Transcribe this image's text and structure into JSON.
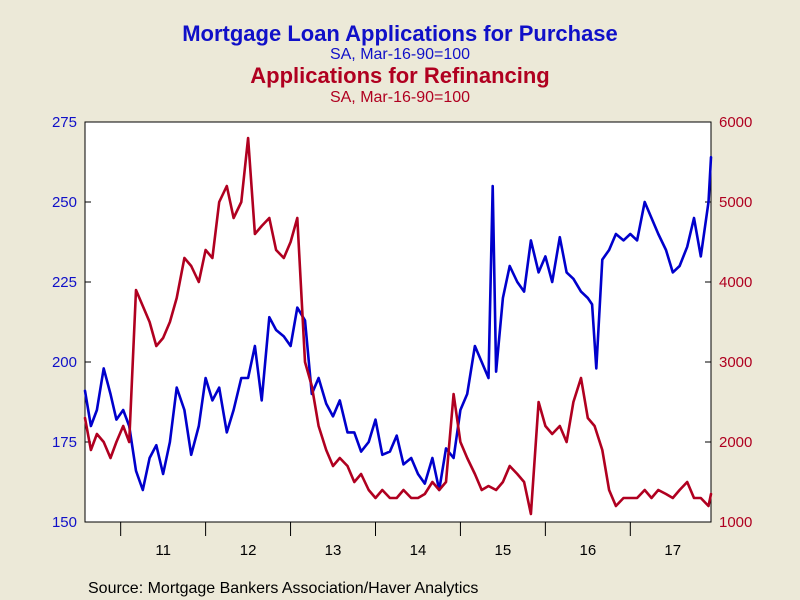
{
  "chart_data": {
    "type": "line",
    "titles": {
      "line1": "Mortgage Loan Applications for Purchase",
      "line2": "SA, Mar-16-90=100",
      "line3": "Applications for Refinancing",
      "line4": "SA, Mar-16-90=100"
    },
    "source": "Source:  Mortgage Bankers Association/Haver Analytics",
    "x_ticks": [
      "11",
      "12",
      "13",
      "14",
      "15",
      "16",
      "17"
    ],
    "xlim": [
      2010.58,
      2017.95
    ],
    "left_axis": {
      "ylim": [
        150,
        275
      ],
      "ticks": [
        "150",
        "175",
        "200",
        "225",
        "250",
        "275"
      ]
    },
    "right_axis": {
      "ylim": [
        1000,
        6000
      ],
      "ticks": [
        "1000",
        "2000",
        "3000",
        "4000",
        "5000",
        "6000"
      ]
    },
    "grid": false,
    "colors": {
      "purchase": "#0000cc",
      "refinancing": "#b00020",
      "background": "#ece9d8",
      "plot_bg": "#ffffff"
    },
    "series": [
      {
        "axis": "left",
        "x": [
          2010.58,
          2010.65,
          2010.72,
          2010.8,
          2010.88,
          2010.95,
          2011.03,
          2011.1,
          2011.18,
          2011.26,
          2011.34,
          2011.42,
          2011.5,
          2011.58,
          2011.66,
          2011.75,
          2011.83,
          2011.92,
          2012.0,
          2012.08,
          2012.16,
          2012.25,
          2012.33,
          2012.42,
          2012.5,
          2012.58,
          2012.66,
          2012.75,
          2012.83,
          2012.92,
          2013.0,
          2013.08,
          2013.17,
          2013.25,
          2013.33,
          2013.42,
          2013.5,
          2013.58,
          2013.67,
          2013.75,
          2013.83,
          2013.92,
          2014.0,
          2014.08,
          2014.17,
          2014.25,
          2014.33,
          2014.42,
          2014.5,
          2014.58,
          2014.67,
          2014.75,
          2014.83,
          2014.92,
          2015.0,
          2015.08,
          2015.17,
          2015.25,
          2015.33,
          2015.38,
          2015.42,
          2015.5,
          2015.58,
          2015.67,
          2015.75,
          2015.83,
          2015.92,
          2016.0,
          2016.08,
          2016.17,
          2016.25,
          2016.33,
          2016.42,
          2016.5,
          2016.55,
          2016.6,
          2016.67,
          2016.75,
          2016.83,
          2016.92,
          2017.0,
          2017.08,
          2017.17,
          2017.25,
          2017.33,
          2017.42,
          2017.5,
          2017.58,
          2017.67,
          2017.75,
          2017.83,
          2017.92,
          2017.95
        ],
        "values": [
          191,
          180,
          185,
          198,
          190,
          182,
          185,
          180,
          166,
          160,
          170,
          174,
          165,
          175,
          192,
          185,
          171,
          180,
          195,
          188,
          192,
          178,
          185,
          195,
          195,
          205,
          188,
          214,
          210,
          208,
          205,
          217,
          213,
          190,
          195,
          187,
          183,
          188,
          178,
          178,
          172,
          175,
          182,
          171,
          172,
          177,
          168,
          170,
          165,
          162,
          170,
          160,
          173,
          170,
          185,
          190,
          205,
          200,
          195,
          255,
          197,
          220,
          230,
          225,
          222,
          238,
          228,
          233,
          225,
          239,
          228,
          226,
          222,
          220,
          218,
          198,
          232,
          235,
          240,
          238,
          240,
          238,
          250,
          245,
          240,
          235,
          228,
          230,
          236,
          245,
          233,
          250,
          264
        ]
      },
      {
        "axis": "right",
        "x": [
          2010.58,
          2010.65,
          2010.72,
          2010.8,
          2010.88,
          2010.95,
          2011.03,
          2011.1,
          2011.18,
          2011.26,
          2011.34,
          2011.42,
          2011.5,
          2011.58,
          2011.66,
          2011.75,
          2011.83,
          2011.92,
          2012.0,
          2012.08,
          2012.16,
          2012.25,
          2012.33,
          2012.42,
          2012.5,
          2012.58,
          2012.66,
          2012.75,
          2012.83,
          2012.92,
          2013.0,
          2013.08,
          2013.17,
          2013.25,
          2013.33,
          2013.42,
          2013.5,
          2013.58,
          2013.67,
          2013.75,
          2013.83,
          2013.92,
          2014.0,
          2014.08,
          2014.17,
          2014.25,
          2014.33,
          2014.42,
          2014.5,
          2014.58,
          2014.67,
          2014.75,
          2014.83,
          2014.92,
          2015.0,
          2015.08,
          2015.17,
          2015.25,
          2015.33,
          2015.42,
          2015.5,
          2015.58,
          2015.67,
          2015.75,
          2015.83,
          2015.92,
          2016.0,
          2016.08,
          2016.17,
          2016.25,
          2016.33,
          2016.42,
          2016.5,
          2016.58,
          2016.67,
          2016.75,
          2016.83,
          2016.92,
          2017.0,
          2017.08,
          2017.17,
          2017.25,
          2017.33,
          2017.42,
          2017.5,
          2017.58,
          2017.67,
          2017.75,
          2017.83,
          2017.92,
          2017.95
        ],
        "values": [
          2300,
          1900,
          2100,
          2000,
          1800,
          2000,
          2200,
          2000,
          3900,
          3700,
          3500,
          3200,
          3300,
          3500,
          3800,
          4300,
          4200,
          4000,
          4400,
          4300,
          5000,
          5200,
          4800,
          5000,
          5800,
          4600,
          4700,
          4800,
          4400,
          4300,
          4500,
          4800,
          3000,
          2700,
          2200,
          1900,
          1700,
          1800,
          1700,
          1500,
          1600,
          1400,
          1300,
          1400,
          1300,
          1300,
          1400,
          1300,
          1300,
          1350,
          1500,
          1400,
          1500,
          2600,
          2000,
          1800,
          1600,
          1400,
          1450,
          1400,
          1500,
          1700,
          1600,
          1500,
          1100,
          2500,
          2200,
          2100,
          2200,
          2000,
          2500,
          2800,
          2300,
          2200,
          1900,
          1400,
          1200,
          1300,
          1300,
          1300,
          1400,
          1300,
          1400,
          1350,
          1300,
          1400,
          1500,
          1300,
          1300,
          1200,
          1350
        ]
      }
    ]
  }
}
